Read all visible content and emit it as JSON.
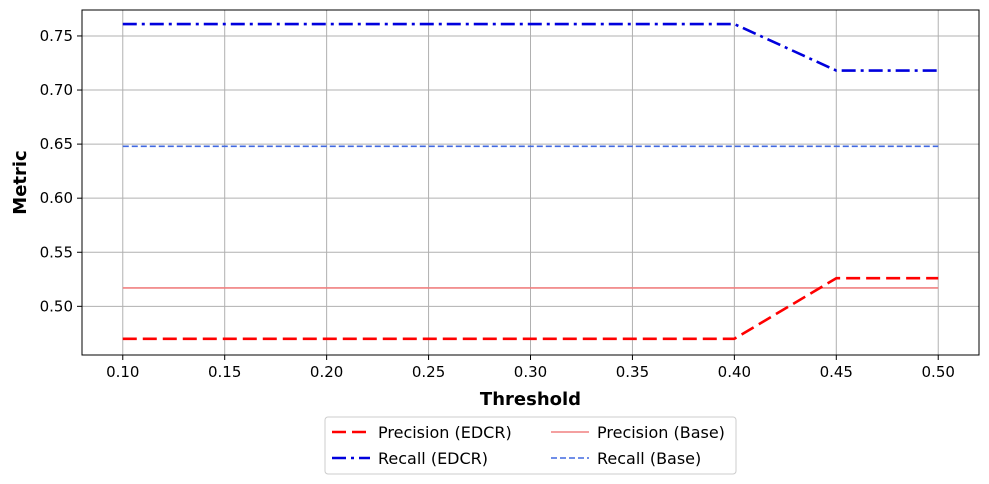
{
  "chart_data": {
    "type": "line",
    "xlabel": "Threshold",
    "ylabel": "Metric",
    "xlim": [
      0.08,
      0.52
    ],
    "ylim": [
      0.455,
      0.774
    ],
    "x_ticks": [
      "0.10",
      "0.15",
      "0.20",
      "0.25",
      "0.30",
      "0.35",
      "0.40",
      "0.45",
      "0.50"
    ],
    "y_ticks": [
      "0.50",
      "0.55",
      "0.60",
      "0.65",
      "0.70",
      "0.75"
    ],
    "grid": true,
    "legend_position": "bottom-center, outside plot",
    "x": [
      0.1,
      0.15,
      0.2,
      0.25,
      0.3,
      0.35,
      0.4,
      0.45,
      0.5
    ],
    "series": [
      {
        "name": "Precision (EDCR)",
        "color": "#ff0000",
        "style": "dashed",
        "values": [
          0.47,
          0.47,
          0.47,
          0.47,
          0.47,
          0.47,
          0.47,
          0.526,
          0.526
        ]
      },
      {
        "name": "Recall (EDCR)",
        "color": "#0000dd",
        "style": "dashdot",
        "values": [
          0.761,
          0.761,
          0.761,
          0.761,
          0.761,
          0.761,
          0.761,
          0.718,
          0.718
        ]
      },
      {
        "name": "Precision (Base)",
        "color": "#f08080",
        "style": "solid",
        "values": [
          0.517,
          0.517,
          0.517,
          0.517,
          0.517,
          0.517,
          0.517,
          0.517,
          0.517
        ]
      },
      {
        "name": "Recall (Base)",
        "color": "#4169e1",
        "style": "dashed-thin",
        "values": [
          0.648,
          0.648,
          0.648,
          0.648,
          0.648,
          0.648,
          0.648,
          0.648,
          0.648
        ]
      }
    ]
  }
}
